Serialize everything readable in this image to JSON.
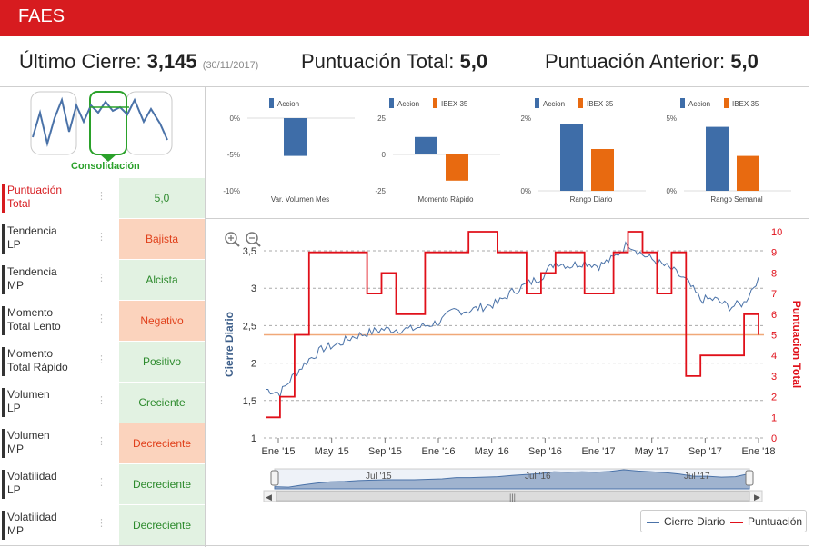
{
  "header": {
    "title": "FAES",
    "color": "#d71b1f"
  },
  "summary": {
    "last_close_label": "Último Cierre:",
    "last_close_value": "3,145",
    "last_close_date": "(30/11/2017)",
    "total_score_label": "Puntuación Total:",
    "total_score_value": "5,0",
    "prev_score_label": "Puntuación Anterior:",
    "prev_score_value": "5,0"
  },
  "pattern": {
    "label": "Consolidación"
  },
  "sidebar": {
    "rows": [
      {
        "line1": "Puntuación",
        "line2": "Total",
        "value": "5,0",
        "status": "positive",
        "highlight": true
      },
      {
        "line1": "Tendencia",
        "line2": "LP",
        "value": "Bajista",
        "status": "negative"
      },
      {
        "line1": "Tendencia",
        "line2": "MP",
        "value": "Alcista",
        "status": "positive"
      },
      {
        "line1": "Momento",
        "line2": "Total Lento",
        "value": "Negativo",
        "status": "negative"
      },
      {
        "line1": "Momento",
        "line2": "Total Rápido",
        "value": "Positivo",
        "status": "positive"
      },
      {
        "line1": "Volumen",
        "line2": "LP",
        "value": "Creciente",
        "status": "positive"
      },
      {
        "line1": "Volumen",
        "line2": "MP",
        "value": "Decreciente",
        "status": "negative"
      },
      {
        "line1": "Volatilidad",
        "line2": "LP",
        "value": "Decreciente",
        "status": "positive"
      },
      {
        "line1": "Volatilidad",
        "line2": "MP",
        "value": "Decreciente",
        "status": "positive"
      }
    ]
  },
  "colors": {
    "accion": "#3e6da8",
    "ibex": "#e86a10",
    "price_line": "#4a72a8",
    "score_line": "#e0101a",
    "positive_bg": "#e2f2e2",
    "negative_bg": "#fbd3bd"
  },
  "legend": {
    "price": "Cierre Diario",
    "score": "Puntuación"
  },
  "navigator": {
    "labels": [
      "Jul '15",
      "Jul '16",
      "Jul '17"
    ]
  },
  "chart_data": [
    {
      "type": "bar",
      "title": "Var. Volumen Mes",
      "series": [
        {
          "name": "Accion",
          "values": [
            -5.2
          ]
        }
      ],
      "ylim": [
        -10,
        0
      ],
      "yticks": [
        "0%",
        "-5%",
        "-10%"
      ]
    },
    {
      "type": "bar",
      "title": "Momento Rápido",
      "series": [
        {
          "name": "Accion",
          "values": [
            12
          ]
        },
        {
          "name": "IBEX 35",
          "values": [
            -18
          ]
        }
      ],
      "ylim": [
        -25,
        25
      ],
      "yticks": [
        "25",
        "0",
        "-25"
      ]
    },
    {
      "type": "bar",
      "title": "Rango Diario",
      "series": [
        {
          "name": "Accion",
          "values": [
            1.85
          ]
        },
        {
          "name": "IBEX 35",
          "values": [
            1.15
          ]
        }
      ],
      "ylim": [
        0,
        2
      ],
      "yticks": [
        "2%",
        "0%"
      ]
    },
    {
      "type": "bar",
      "title": "Rango Semanal",
      "series": [
        {
          "name": "Accion",
          "values": [
            4.4
          ]
        },
        {
          "name": "IBEX 35",
          "values": [
            2.4
          ]
        }
      ],
      "ylim": [
        0,
        5
      ],
      "yticks": [
        "5%",
        "0%"
      ]
    },
    {
      "type": "line",
      "ylabel": "Cierre Diario",
      "y2label": "Puntuacion Total",
      "x_ticks": [
        "Ene '15",
        "May '15",
        "Sep '15",
        "Ene '16",
        "May '16",
        "Sep '16",
        "Ene '17",
        "May '17",
        "Sep '17",
        "Ene '18"
      ],
      "y_ticks": [
        "1",
        "1,5",
        "2",
        "2,5",
        "3",
        "3,5"
      ],
      "y2_ticks": [
        "0",
        "1",
        "2",
        "3",
        "4",
        "5",
        "6",
        "7",
        "8",
        "9",
        "10"
      ],
      "ylim": [
        1,
        3.5
      ],
      "y2lim": [
        0,
        10
      ],
      "reference_score": 5,
      "series": [
        {
          "name": "Cierre Diario",
          "axis": "left",
          "x": [
            "Ene '15",
            "Feb '15",
            "Mar '15",
            "Abr '15",
            "May '15",
            "Jun '15",
            "Jul '15",
            "Ago '15",
            "Sep '15",
            "Oct '15",
            "Nov '15",
            "Dic '15",
            "Ene '16",
            "Feb '16",
            "Mar '16",
            "Abr '16",
            "May '16",
            "Jun '16",
            "Jul '16",
            "Ago '16",
            "Sep '16",
            "Oct '16",
            "Nov '16",
            "Dic '16",
            "Ene '17",
            "Feb '17",
            "Mar '17",
            "Abr '17",
            "May '17",
            "Jun '17",
            "Jul '17",
            "Ago '17",
            "Sep '17",
            "Oct '17",
            "Nov '17"
          ],
          "values": [
            1.65,
            1.6,
            1.85,
            2.05,
            2.2,
            2.25,
            2.35,
            2.4,
            2.45,
            2.45,
            2.45,
            2.5,
            2.55,
            2.7,
            2.7,
            2.75,
            2.8,
            2.95,
            3.05,
            3.15,
            3.35,
            3.3,
            3.35,
            3.3,
            3.4,
            3.6,
            3.45,
            3.35,
            3.25,
            3.1,
            2.85,
            2.85,
            2.75,
            2.8,
            3.145
          ]
        },
        {
          "name": "Puntuación",
          "axis": "right",
          "x": [
            "Ene '15",
            "Feb '15",
            "Mar '15",
            "Abr '15",
            "May '15",
            "Jun '15",
            "Jul '15",
            "Ago '15",
            "Sep '15",
            "Oct '15",
            "Nov '15",
            "Dic '15",
            "Ene '16",
            "Feb '16",
            "Mar '16",
            "Abr '16",
            "May '16",
            "Jun '16",
            "Jul '16",
            "Ago '16",
            "Sep '16",
            "Oct '16",
            "Nov '16",
            "Dic '16",
            "Ene '17",
            "Feb '17",
            "Mar '17",
            "Abr '17",
            "May '17",
            "Jun '17",
            "Jul '17",
            "Ago '17",
            "Sep '17",
            "Oct '17",
            "Nov '17"
          ],
          "values": [
            1,
            2,
            5,
            9,
            9,
            9,
            9,
            7,
            8,
            6,
            6,
            9,
            9,
            9,
            10,
            10,
            9,
            9,
            7,
            8,
            9,
            9,
            7,
            7,
            9,
            10,
            9,
            7,
            9,
            3,
            4,
            4,
            4,
            6,
            5
          ]
        }
      ]
    }
  ]
}
